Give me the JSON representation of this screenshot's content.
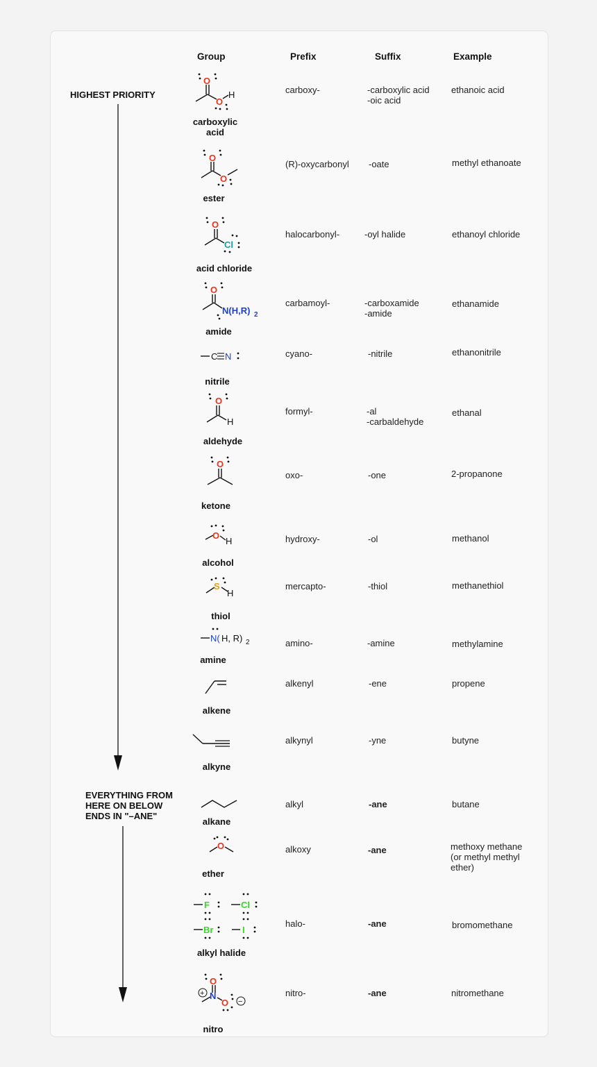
{
  "headers": {
    "group": "Group",
    "prefix": "Prefix",
    "suffix": "Suffix",
    "example": "Example"
  },
  "side": {
    "top": "HIGHEST PRIORITY",
    "middle": "EVERYTHING FROM\nHERE ON BELOW\nENDS IN \"–ANE\""
  },
  "colors": {
    "oxygen": "#e8351e",
    "nitrogen": "#1a3fd6",
    "chlorine": "#1aa0a0",
    "sulfur": "#e0a020",
    "halogen": "#33dd22",
    "bond": "#111111"
  },
  "rows": [
    {
      "name": "carboxylic\nacid",
      "prefix": "carboxy-",
      "suffix": "-carboxylic acid\n-oic acid",
      "example": "ethanoic acid",
      "icon": "carboxylic-acid-structure-icon"
    },
    {
      "name": "ester",
      "prefix": "(R)-oxycarbonyl",
      "suffix": "-oate",
      "example": "methyl ethanoate",
      "icon": "ester-structure-icon"
    },
    {
      "name": "acid chloride",
      "prefix": "halocarbonyl-",
      "suffix": "-oyl halide",
      "example": "ethanoyl chloride",
      "icon": "acid-chloride-structure-icon"
    },
    {
      "name": "amide",
      "prefix": "carbamoyl-",
      "suffix": "-carboxamide\n-amide",
      "example": "ethanamide",
      "icon": "amide-structure-icon"
    },
    {
      "name": "nitrile",
      "prefix": "cyano-",
      "suffix": "-nitrile",
      "example": "ethanonitrile",
      "icon": "nitrile-structure-icon"
    },
    {
      "name": "aldehyde",
      "prefix": "formyl-",
      "suffix": "-al\n-carbaldehyde",
      "example": "ethanal",
      "icon": "aldehyde-structure-icon"
    },
    {
      "name": "ketone",
      "prefix": "oxo-",
      "suffix": "-one",
      "example": "2-propanone",
      "icon": "ketone-structure-icon"
    },
    {
      "name": "alcohol",
      "prefix": "hydroxy-",
      "suffix": "-ol",
      "example": "methanol",
      "icon": "alcohol-structure-icon"
    },
    {
      "name": "thiol",
      "prefix": "mercapto-",
      "suffix": "-thiol",
      "example": "methanethiol",
      "icon": "thiol-structure-icon"
    },
    {
      "name": "amine",
      "prefix": "amino-",
      "suffix": "-amine",
      "example": "methylamine",
      "icon": "amine-structure-icon"
    },
    {
      "name": "alkene",
      "prefix": "alkenyl",
      "suffix": "-ene",
      "example": "propene",
      "icon": "alkene-structure-icon"
    },
    {
      "name": "alkyne",
      "prefix": "alkynyl",
      "suffix": "-yne",
      "example": "butyne",
      "icon": "alkyne-structure-icon"
    },
    {
      "name": "alkane",
      "prefix": "alkyl",
      "suffix": "-ane",
      "example": "butane",
      "icon": "alkane-structure-icon"
    },
    {
      "name": "ether",
      "prefix": "alkoxy",
      "suffix": "-ane",
      "example": "methoxy methane\n(or methyl methyl\nether)",
      "icon": "ether-structure-icon"
    },
    {
      "name": "alkyl halide",
      "prefix": "halo-",
      "suffix": "-ane",
      "example": "bromomethane",
      "icon": "alkyl-halide-structure-icon"
    },
    {
      "name": "nitro",
      "prefix": "nitro-",
      "suffix": "-ane",
      "example": "nitromethane",
      "icon": "nitro-structure-icon"
    }
  ],
  "atoms": {
    "o": "O",
    "h": "H",
    "cl": "Cl",
    "n_h_r": "N(H,R)",
    "sub2": "2",
    "c": "C",
    "n": "N",
    "s": "S",
    "n_open": "N(",
    "h_r": "H, R)",
    "f": "F",
    "br": "Br",
    "i": "I",
    "plus": "+",
    "minus": "−"
  }
}
